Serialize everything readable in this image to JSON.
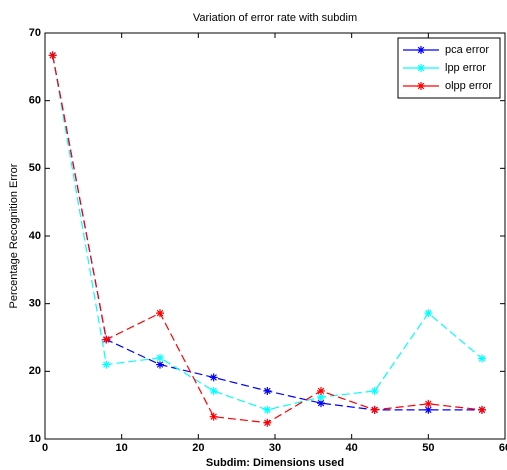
{
  "chart_data": {
    "type": "line",
    "title": "Variation of error rate with subdim",
    "xlabel": "Subdim: Dimensions used",
    "ylabel": "Percentage Recognition Error",
    "x": [
      1,
      8,
      15,
      22,
      29,
      36,
      43,
      50,
      57
    ],
    "series": [
      {
        "name": "pca error",
        "color": "#0000ff",
        "values": [
          66.7,
          24.7,
          21.0,
          19.1,
          17.1,
          15.3,
          14.3,
          14.3,
          14.3
        ]
      },
      {
        "name": "lpp error",
        "color": "#00ffff",
        "values": [
          66.7,
          21.0,
          22.0,
          17.1,
          14.3,
          16.2,
          17.1,
          28.6,
          21.9
        ]
      },
      {
        "name": "olpp error",
        "color": "#ff0000",
        "values": [
          66.7,
          24.7,
          28.6,
          13.3,
          12.4,
          17.1,
          14.3,
          15.2,
          14.3
        ]
      }
    ],
    "xlim": [
      0,
      60
    ],
    "xticks": [
      0,
      10,
      20,
      30,
      40,
      50,
      60
    ],
    "ylim": [
      10,
      70
    ],
    "yticks": [
      10,
      20,
      30,
      40,
      50,
      60,
      70
    ],
    "legend": "northeast",
    "grid": false
  }
}
